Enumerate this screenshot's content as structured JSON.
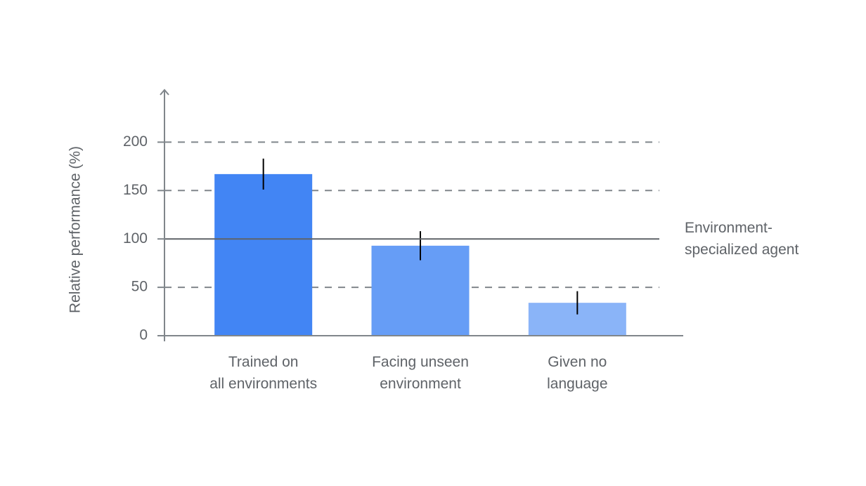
{
  "chart_data": {
    "type": "bar",
    "y_label": "Relative performance (%)",
    "categories": [
      "Trained on\nall environments",
      "Facing unseen\nenvironment",
      "Given no\nlanguage"
    ],
    "values": [
      167,
      93,
      34
    ],
    "errors": [
      16,
      15,
      12
    ],
    "colors": [
      "#4285f4",
      "#669df6",
      "#8ab4f8"
    ],
    "ylim": [
      0,
      254
    ],
    "yticks": [
      0,
      50,
      100,
      150,
      200
    ],
    "grid": true,
    "reference_line": {
      "value": 100,
      "label": "Environment-\nspecialized agent"
    }
  }
}
